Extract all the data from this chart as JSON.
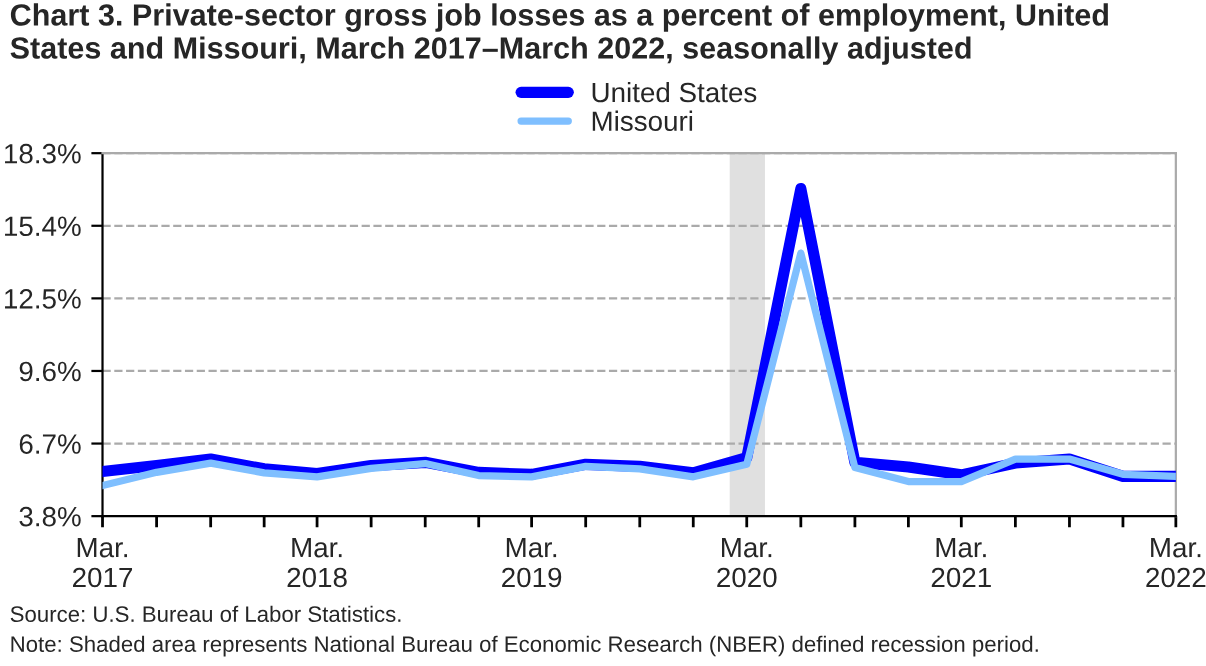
{
  "chart_data": {
    "type": "line",
    "title": "Chart 3. Private-sector gross job losses as a percent of employment, United States and Missouri, March 2017–March 2022, seasonally adjusted",
    "x": [
      "2017-03",
      "2017-06",
      "2017-09",
      "2017-12",
      "2018-03",
      "2018-06",
      "2018-09",
      "2018-12",
      "2019-03",
      "2019-06",
      "2019-09",
      "2019-12",
      "2020-03",
      "2020-06",
      "2020-09",
      "2020-12",
      "2021-03",
      "2021-06",
      "2021-09",
      "2021-12",
      "2022-03"
    ],
    "series": [
      {
        "name": "United States",
        "color": "#0000ff",
        "values": [
          5.58,
          5.82,
          6.08,
          5.69,
          5.5,
          5.82,
          5.95,
          5.55,
          5.47,
          5.87,
          5.79,
          5.53,
          6.14,
          16.89,
          5.95,
          5.76,
          5.45,
          5.92,
          6.08,
          5.39,
          5.39
        ]
      },
      {
        "name": "Missouri",
        "color": "#7fbfff",
        "values": [
          5.02,
          5.55,
          5.92,
          5.53,
          5.37,
          5.71,
          5.9,
          5.42,
          5.37,
          5.79,
          5.69,
          5.37,
          5.87,
          14.31,
          5.74,
          5.18,
          5.18,
          6.08,
          6.08,
          5.47,
          5.39
        ]
      }
    ],
    "ylim": [
      3.8,
      18.3
    ],
    "yticks": [
      {
        "value": 3.8,
        "label": "3.8%"
      },
      {
        "value": 6.7,
        "label": "6.7%"
      },
      {
        "value": 9.6,
        "label": "9.6%"
      },
      {
        "value": 12.5,
        "label": "12.5%"
      },
      {
        "value": 15.4,
        "label": "15.4%"
      },
      {
        "value": 18.3,
        "label": "18.3%"
      }
    ],
    "xlim": [
      "2017-03",
      "2022-03"
    ],
    "xticks": [
      {
        "value": "2017-03",
        "label": "Mar.\n2017"
      },
      {
        "value": "2017-06",
        "label": null
      },
      {
        "value": "2017-09",
        "label": null
      },
      {
        "value": "2017-12",
        "label": null
      },
      {
        "value": "2018-03",
        "label": "Mar.\n2018"
      },
      {
        "value": "2018-06",
        "label": null
      },
      {
        "value": "2018-09",
        "label": null
      },
      {
        "value": "2018-12",
        "label": null
      },
      {
        "value": "2019-03",
        "label": "Mar.\n2019"
      },
      {
        "value": "2019-06",
        "label": null
      },
      {
        "value": "2019-09",
        "label": null
      },
      {
        "value": "2019-12",
        "label": null
      },
      {
        "value": "2020-03",
        "label": "Mar.\n2020"
      },
      {
        "value": "2020-06",
        "label": null
      },
      {
        "value": "2020-09",
        "label": null
      },
      {
        "value": "2020-12",
        "label": null
      },
      {
        "value": "2021-03",
        "label": "Mar.\n2021"
      },
      {
        "value": "2021-06",
        "label": null
      },
      {
        "value": "2021-09",
        "label": null
      },
      {
        "value": "2021-12",
        "label": null
      },
      {
        "value": "2022-03",
        "label": "Mar.\n2022"
      }
    ],
    "bands": [
      {
        "axis": "x",
        "from": "2020-02",
        "to": "2020-04",
        "color": "#e0e0e0"
      }
    ],
    "grid": "y",
    "legend": "top",
    "line_style": "solid",
    "marker": "none",
    "annotations": [
      "Source: U.S. Bureau of Labor Statistics.",
      "Note: Shaded area represents National Bureau of Economic Research (NBER) defined recession period."
    ]
  }
}
